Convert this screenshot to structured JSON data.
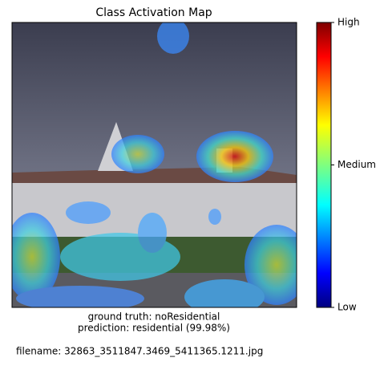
{
  "chart_data": {
    "type": "image",
    "title": "Class Activation Map",
    "colorbar": {
      "clim": [
        0,
        1
      ],
      "ticks": [
        {
          "value": 0,
          "label": "Low"
        },
        {
          "value": 0.5,
          "label": "Medium"
        },
        {
          "value": 1,
          "label": "High"
        }
      ]
    },
    "xlabel": [
      "ground truth: noResidential",
      "prediction: residential (99.98%)"
    ],
    "filename": "filename: 32863_3511847.3469_5411365.1211.jpg"
  }
}
